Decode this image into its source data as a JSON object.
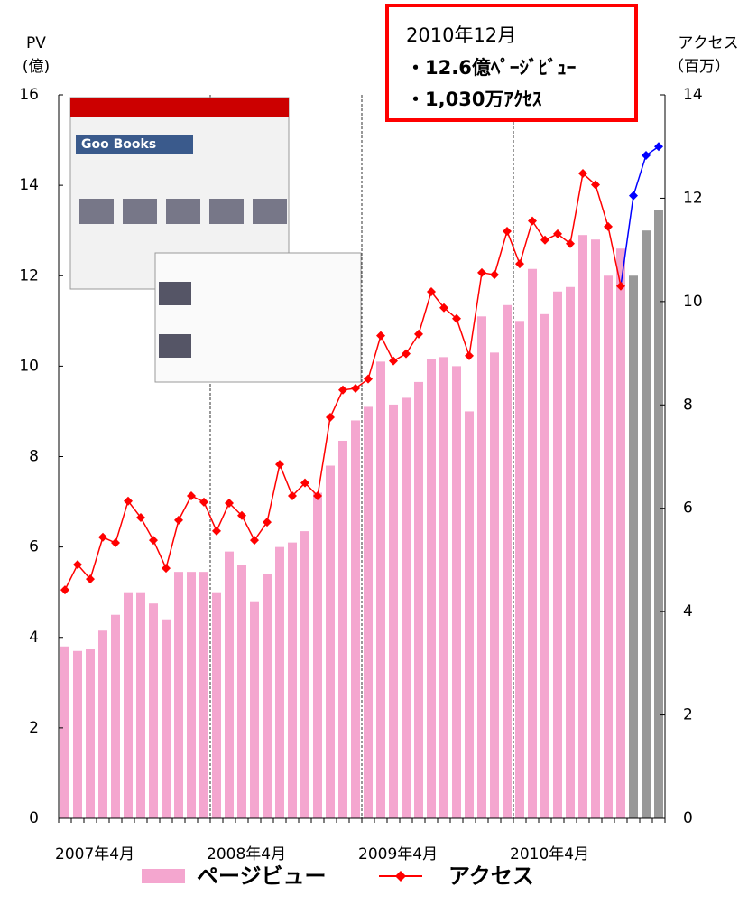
{
  "chart_data": {
    "type": "bar_line",
    "left_axis_title": [
      "PV",
      "(億)"
    ],
    "right_axis_title": [
      "アクセス",
      "（百万）"
    ],
    "annotation": [
      "2010年12月",
      "・12.6億ﾍﾟｰｼﾞﾋﾞｭｰ",
      "・1,030万ｱｸｾｽ"
    ],
    "inset_title": "Goo Books",
    "categories": [
      "2007年4月",
      null,
      null,
      null,
      null,
      null,
      null,
      null,
      null,
      null,
      null,
      null,
      "2008年4月",
      null,
      null,
      null,
      null,
      null,
      null,
      null,
      null,
      null,
      null,
      null,
      "2009年4月",
      null,
      null,
      null,
      null,
      null,
      null,
      null,
      null,
      null,
      null,
      null,
      "2010年4月",
      null,
      null,
      null,
      null,
      null,
      null,
      null,
      null,
      null,
      null,
      null
    ],
    "series": [
      {
        "name": "ページビュー",
        "color": "#f4a6cf",
        "colors": [
          "#f4a6cf",
          "#f4a6cf",
          "#f4a6cf",
          "#f4a6cf",
          "#f4a6cf",
          "#f4a6cf",
          "#f4a6cf",
          "#f4a6cf",
          "#f4a6cf",
          "#f4a6cf",
          "#f4a6cf",
          "#f4a6cf",
          "#f4a6cf",
          "#f4a6cf",
          "#f4a6cf",
          "#f4a6cf",
          "#f4a6cf",
          "#f4a6cf",
          "#f4a6cf",
          "#f4a6cf",
          "#f4a6cf",
          "#f4a6cf",
          "#f4a6cf",
          "#f4a6cf",
          "#f4a6cf",
          "#f4a6cf",
          "#f4a6cf",
          "#f4a6cf",
          "#f4a6cf",
          "#f4a6cf",
          "#f4a6cf",
          "#f4a6cf",
          "#f4a6cf",
          "#f4a6cf",
          "#f4a6cf",
          "#f4a6cf",
          "#f4a6cf",
          "#f4a6cf",
          "#f4a6cf",
          "#f4a6cf",
          "#f4a6cf",
          "#f4a6cf",
          "#f4a6cf",
          "#f4a6cf",
          "#f4a6cf",
          "#999999",
          "#999999",
          "#999999"
        ],
        "values": [
          3.8,
          3.7,
          3.75,
          4.15,
          4.5,
          5.0,
          5.0,
          4.75,
          4.4,
          5.45,
          5.45,
          5.45,
          5.0,
          5.9,
          5.6,
          4.8,
          5.4,
          6.0,
          6.1,
          6.35,
          7.2,
          7.8,
          8.35,
          8.8,
          9.1,
          10.1,
          9.15,
          9.3,
          9.65,
          10.15,
          10.2,
          10.0,
          9.0,
          11.1,
          10.3,
          11.35,
          11.0,
          12.15,
          11.15,
          11.65,
          11.75,
          12.9,
          12.8,
          12.0,
          12.6,
          12.0,
          13.0,
          13.45
        ]
      },
      {
        "name": "アクセス",
        "color": "#ff0000",
        "axis": "y2",
        "colors": [
          "#ff0000",
          "#ff0000",
          "#ff0000",
          "#ff0000",
          "#ff0000",
          "#ff0000",
          "#ff0000",
          "#ff0000",
          "#ff0000",
          "#ff0000",
          "#ff0000",
          "#ff0000",
          "#ff0000",
          "#ff0000",
          "#ff0000",
          "#ff0000",
          "#ff0000",
          "#ff0000",
          "#ff0000",
          "#ff0000",
          "#ff0000",
          "#ff0000",
          "#ff0000",
          "#ff0000",
          "#ff0000",
          "#ff0000",
          "#ff0000",
          "#ff0000",
          "#ff0000",
          "#ff0000",
          "#ff0000",
          "#ff0000",
          "#ff0000",
          "#ff0000",
          "#ff0000",
          "#ff0000",
          "#ff0000",
          "#ff0000",
          "#ff0000",
          "#ff0000",
          "#ff0000",
          "#ff0000",
          "#ff0000",
          "#ff0000",
          "#ff0000",
          "#0000ff",
          "#0000ff",
          "#0000ff"
        ],
        "values": [
          4.42,
          4.91,
          4.63,
          5.44,
          5.33,
          6.14,
          5.82,
          5.38,
          4.84,
          5.77,
          6.24,
          6.12,
          5.56,
          6.1,
          5.86,
          5.38,
          5.73,
          6.85,
          6.24,
          6.49,
          6.24,
          7.76,
          8.29,
          8.32,
          8.5,
          9.34,
          8.85,
          8.99,
          9.37,
          10.19,
          9.88,
          9.67,
          8.95,
          10.56,
          10.52,
          11.36,
          10.73,
          11.56,
          11.19,
          11.31,
          11.12,
          12.48,
          12.26,
          11.45,
          10.3,
          12.05,
          12.83,
          13.0
        ]
      }
    ],
    "ylim": [
      0,
      16
    ],
    "yticks": [
      0,
      2,
      4,
      6,
      8,
      10,
      12,
      14,
      16
    ],
    "y2lim": [
      0,
      14
    ],
    "y2ticks": [
      0,
      2,
      4,
      6,
      8,
      10,
      12,
      14
    ]
  }
}
